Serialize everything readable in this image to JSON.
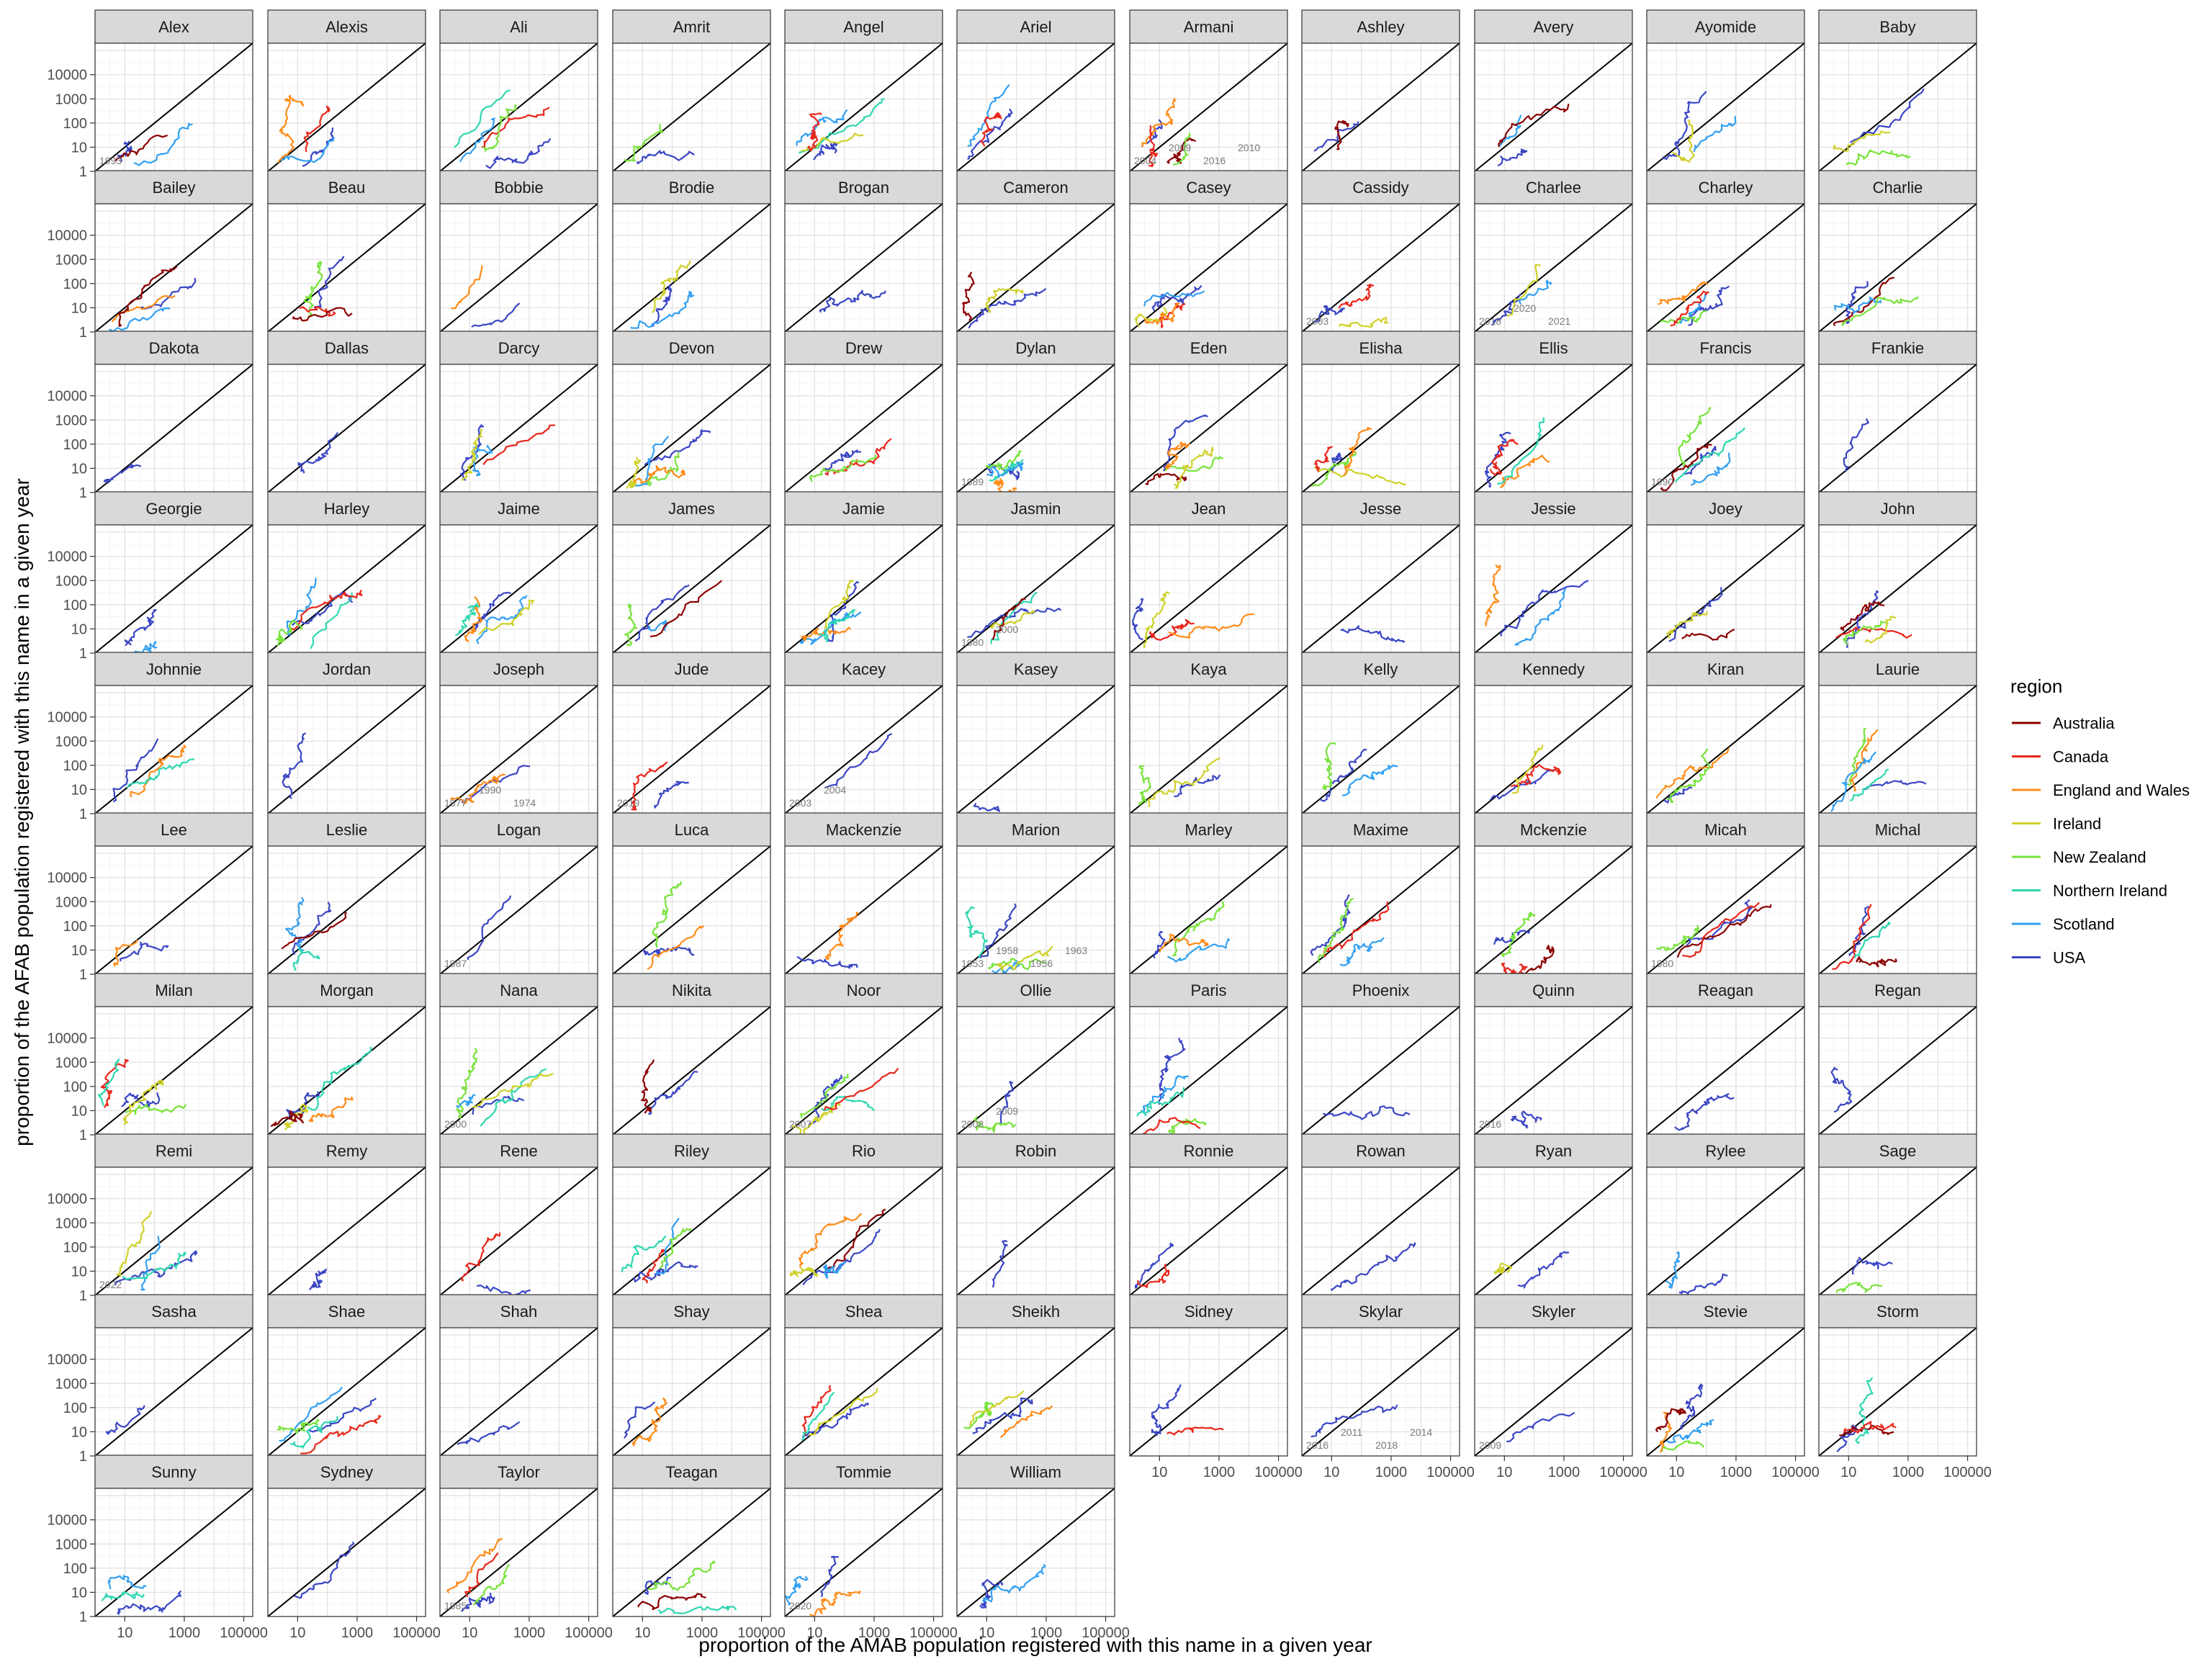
{
  "chart_data": {
    "type": "line",
    "xlabel": "proportion of the AMAB population registered with this name in a given year",
    "ylabel": "proportion of the AFAB population registered with this name in a given year",
    "scale": "log10",
    "ticks": [
      1,
      10,
      100,
      1000,
      10000,
      100000
    ],
    "x_tick_labels": [
      "10",
      "1000",
      "100000"
    ],
    "y_tick_labels": [
      "1",
      "10",
      "100",
      "1000",
      "10000"
    ],
    "xlim": [
      1,
      200000
    ],
    "ylim": [
      1,
      200000
    ],
    "reference_line": "y = x",
    "grid": true,
    "legend": {
      "title": "region",
      "placement": "right",
      "entries": [
        {
          "name": "Australia",
          "color": "#8b0000"
        },
        {
          "name": "Canada",
          "color": "#e8271b"
        },
        {
          "name": "England and Wales",
          "color": "#ff8c1a"
        },
        {
          "name": "Ireland",
          "color": "#cfd12b"
        },
        {
          "name": "New Zealand",
          "color": "#78e33b"
        },
        {
          "name": "Northern Ireland",
          "color": "#2fd7b0"
        },
        {
          "name": "Scotland",
          "color": "#33a0f0"
        },
        {
          "name": "USA",
          "color": "#3b46c4"
        }
      ]
    },
    "facets": [
      "Alex",
      "Alexis",
      "Ali",
      "Amrit",
      "Angel",
      "Ariel",
      "Armani",
      "Ashley",
      "Avery",
      "Ayomide",
      "Baby",
      "Bailey",
      "Beau",
      "Bobbie",
      "Brodie",
      "Brogan",
      "Cameron",
      "Casey",
      "Cassidy",
      "Charlee",
      "Charley",
      "Charlie",
      "Dakota",
      "Dallas",
      "Darcy",
      "Devon",
      "Drew",
      "Dylan",
      "Eden",
      "Elisha",
      "Ellis",
      "Francis",
      "Frankie",
      "Georgie",
      "Harley",
      "Jaime",
      "James",
      "Jamie",
      "Jasmin",
      "Jean",
      "Jesse",
      "Jessie",
      "Joey",
      "John",
      "Johnnie",
      "Jordan",
      "Joseph",
      "Jude",
      "Kacey",
      "Kasey",
      "Kaya",
      "Kelly",
      "Kennedy",
      "Kiran",
      "Laurie",
      "Lee",
      "Leslie",
      "Logan",
      "Luca",
      "Mackenzie",
      "Marion",
      "Marley",
      "Maxime",
      "Mckenzie",
      "Micah",
      "Michal",
      "Milan",
      "Morgan",
      "Nana",
      "Nikita",
      "Noor",
      "Ollie",
      "Paris",
      "Phoenix",
      "Quinn",
      "Reagan",
      "Regan",
      "Remi",
      "Remy",
      "Rene",
      "Riley",
      "Rio",
      "Robin",
      "Ronnie",
      "Rowan",
      "Ryan",
      "Rylee",
      "Sage",
      "Sasha",
      "Shae",
      "Shah",
      "Shay",
      "Shea",
      "Sheikh",
      "Sidney",
      "Skylar",
      "Skyler",
      "Stevie",
      "Storm",
      "Sunny",
      "Sydney",
      "Taylor",
      "Teagan",
      "Tommie",
      "William"
    ],
    "annotations": {
      "Alex": [
        "1993"
      ],
      "Armani": [
        "2004",
        "2009",
        "2016",
        "2010"
      ],
      "Cassidy": [
        "2003"
      ],
      "Charlee": [
        "2018",
        "2020",
        "2021"
      ],
      "Dylan": [
        "1989"
      ],
      "Francis": [
        "1990"
      ],
      "Jasmin": [
        "1980",
        "2000"
      ],
      "Joseph": [
        "1977",
        "1990",
        "1974"
      ],
      "Jude": [
        "2019"
      ],
      "Kacey": [
        "2003",
        "2004"
      ],
      "Logan": [
        "1987"
      ],
      "Marion": [
        "1953",
        "1958",
        "1956",
        "1963"
      ],
      "Micah": [
        "1980"
      ],
      "Nana": [
        "2000"
      ],
      "Noor": [
        "2007"
      ],
      "Ollie": [
        "2008",
        "2009"
      ],
      "Quinn": [
        "2016"
      ],
      "Remi": [
        "2022"
      ],
      "Skylar": [
        "2016",
        "2011",
        "2018",
        "2014"
      ],
      "Skyler": [
        "2009"
      ],
      "Taylor": [
        "1985"
      ],
      "Tommie": [
        "2020"
      ]
    }
  }
}
